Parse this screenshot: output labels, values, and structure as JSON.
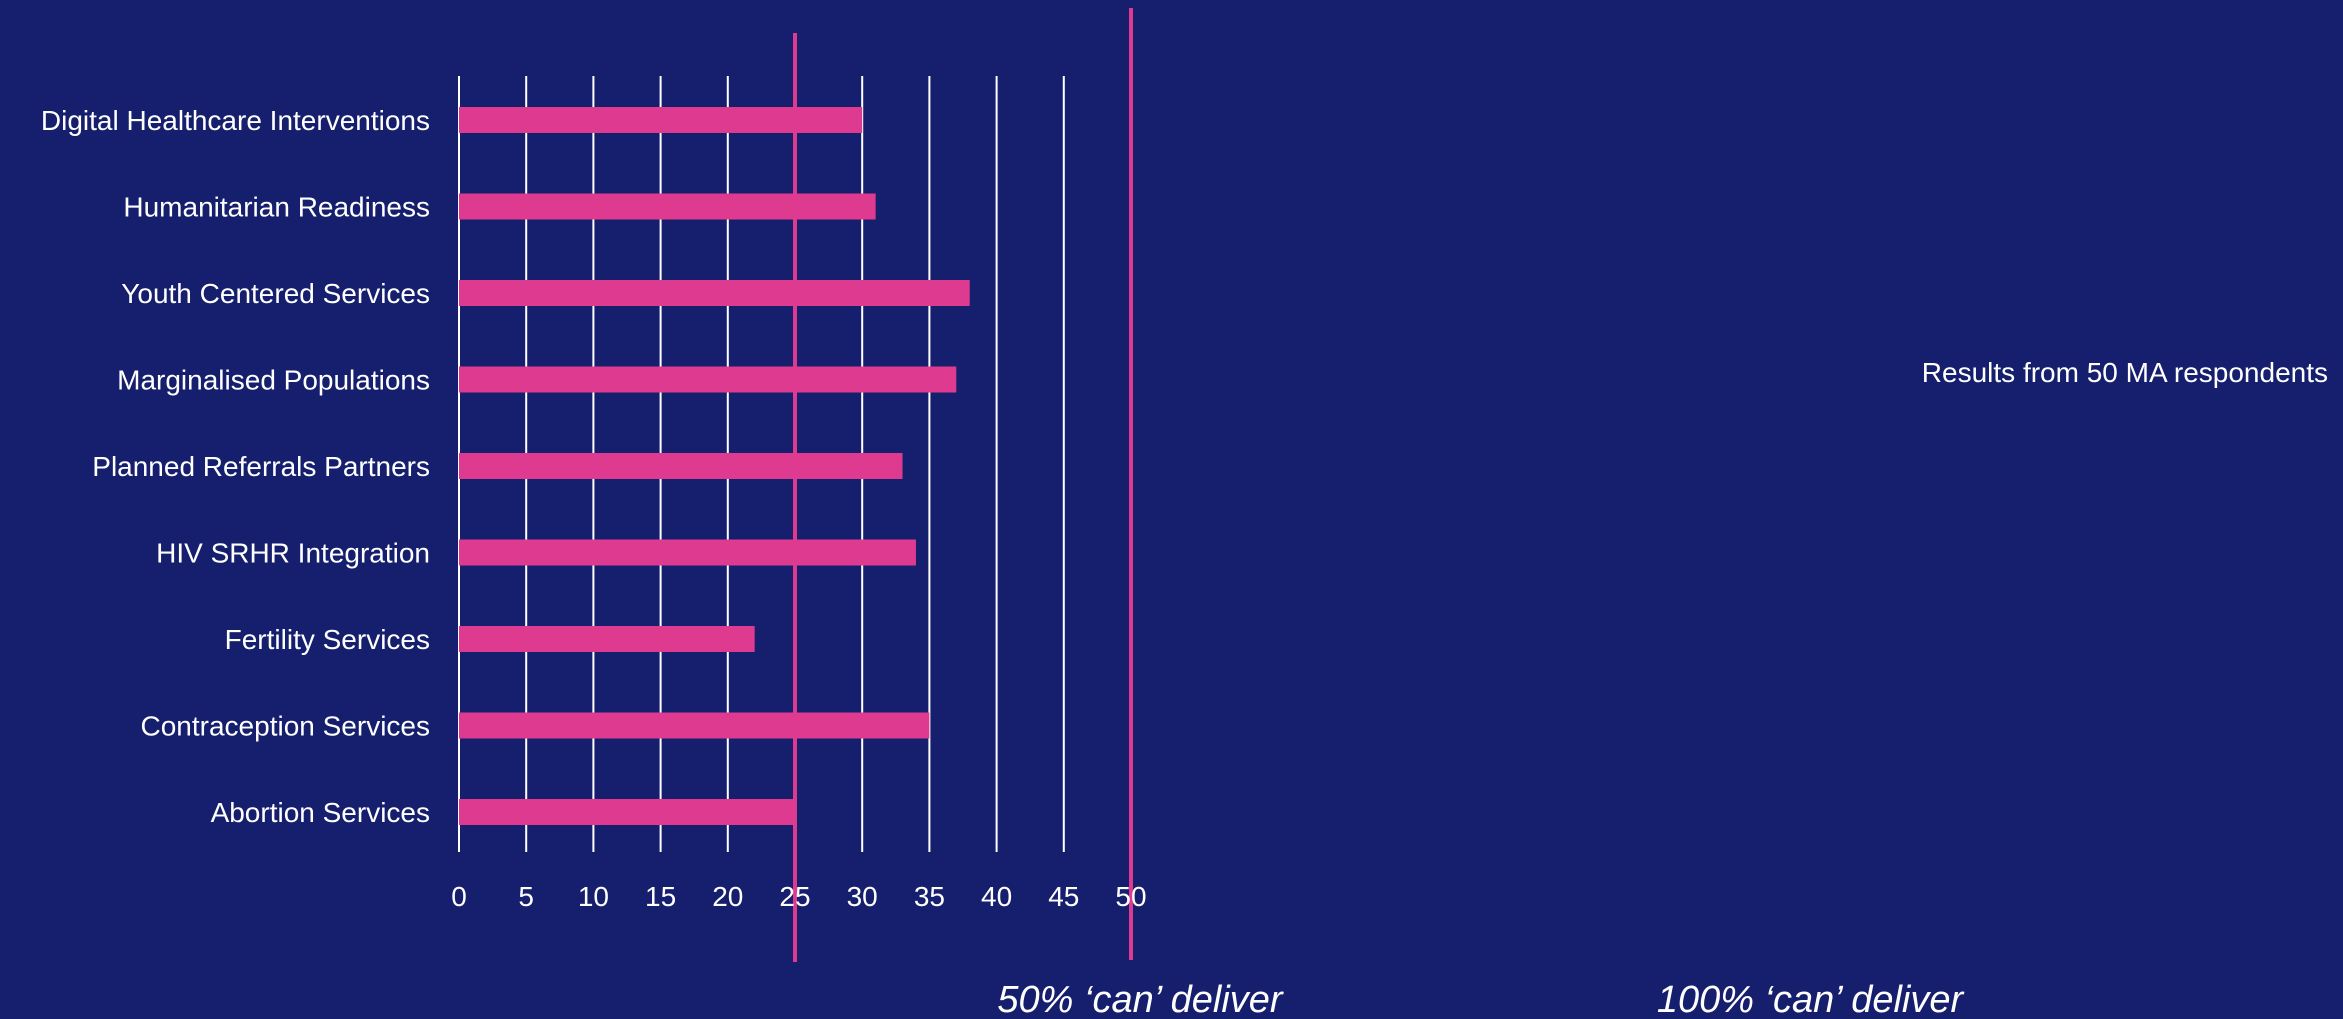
{
  "chart_data": {
    "type": "bar",
    "orientation": "horizontal",
    "categories": [
      "Digital Healthcare Interventions",
      "Humanitarian Readiness",
      "Youth Centered Services",
      "Marginalised Populations",
      "Planned Referrals Partners",
      "HIV SRHR Integration",
      "Fertility Services",
      "Contraception Services",
      "Abortion Services"
    ],
    "values": [
      30,
      31,
      38,
      37,
      33,
      34,
      22,
      35,
      25
    ],
    "xlim": [
      0,
      50
    ],
    "xticks": [
      0,
      5,
      10,
      15,
      20,
      25,
      30,
      35,
      40,
      45,
      50
    ],
    "grid": "vertical",
    "reference_lines": [
      {
        "value": 25,
        "label": "50% ‘can’ deliver"
      },
      {
        "value": 50,
        "label": "100% ‘can’ deliver"
      }
    ],
    "annotation": "Results from 50 MA respondents",
    "title": "",
    "xlabel": "",
    "ylabel": ""
  },
  "colors": {
    "background": "#161f6d",
    "bar": "#de3a8f",
    "reference_line": "#de3a8f",
    "grid": "#ffffff",
    "text": "#ffffff"
  }
}
